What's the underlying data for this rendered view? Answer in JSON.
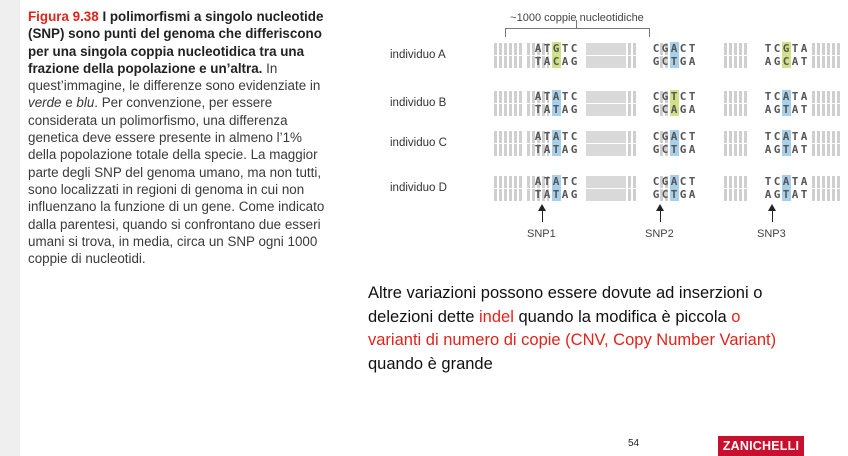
{
  "caption": {
    "figure_label": "Figura 9.38",
    "title": "I polimorfismi a singolo nucleotide (SNP) sono punti del genoma che differiscono per una singola coppia nucleotidica tra una frazione della popolazione e un’altra.",
    "text1": "In quest’immagine, le differenze sono evidenziate in ",
    "green_word": "verde",
    "and_word": " e ",
    "blue_word": "blu",
    "text2": ". Per convenzione, per essere considerata un polimorfismo, una differenza genetica deve essere presente in almeno l’1% della popolazione totale della specie. La maggior parte degli SNP del genoma umano, ma non tutti, sono localizzati in regioni di genoma in cui non influenzano la funzione di un gene. Come indicato dalla parentesi, quando si confrontano due esseri umani si trova, in media, circa un SNP ogni 1000 coppie di nucleotidi."
  },
  "figure": {
    "bracket_label": "~1000 coppie nucleotidiche",
    "rows": [
      {
        "label": "individuo A",
        "s1_top": "ATGTC",
        "s1_bot": "TACAG",
        "s1_color": "green",
        "s2_top": "CGACT",
        "s2_bot": "GCTGA",
        "s2_color": "blue",
        "s3_top": "TCGTA",
        "s3_bot": "AGCAT",
        "s3_color": "green"
      },
      {
        "label": "individuo B",
        "s1_top": "ATATC",
        "s1_bot": "TATAG",
        "s1_color": "blue",
        "s2_top": "CGTCT",
        "s2_bot": "GCAGA",
        "s2_color": "green",
        "s3_top": "TCATA",
        "s3_bot": "AGTAT",
        "s3_color": "blue"
      },
      {
        "label": "individuo C",
        "s1_top": "ATATC",
        "s1_bot": "TATAG",
        "s1_color": "blue",
        "s2_top": "CGACT",
        "s2_bot": "GCTGA",
        "s2_color": "blue",
        "s3_top": "TCATA",
        "s3_bot": "AGTAT",
        "s3_color": "blue"
      },
      {
        "label": "individuo D",
        "s1_top": "ATATC",
        "s1_bot": "TATAG",
        "s1_color": "blue",
        "s2_top": "CGACT",
        "s2_bot": "GCTGA",
        "s2_color": "blue",
        "s3_top": "TCATA",
        "s3_bot": "AGTAT",
        "s3_color": "blue"
      }
    ],
    "snp_labels": [
      "SNP1",
      "SNP2",
      "SNP3"
    ]
  },
  "body": {
    "part1": "Altre variazioni possono essere dovute ad inserzioni o delezioni dette ",
    "indel": "indel",
    "part2": " quando la modifica è piccola ",
    "cnv": "o varianti di numero di copie (CNV, Copy Number Variant)",
    "part3": " quando è grande"
  },
  "footer": {
    "page_number": "54",
    "logo_text": "ZANICHELLI"
  },
  "colors": {
    "green_highlight": "#cfe28a",
    "blue_highlight": "#a9d0ea",
    "accent_red": "#e2231a",
    "logo_red": "#c8102e"
  }
}
